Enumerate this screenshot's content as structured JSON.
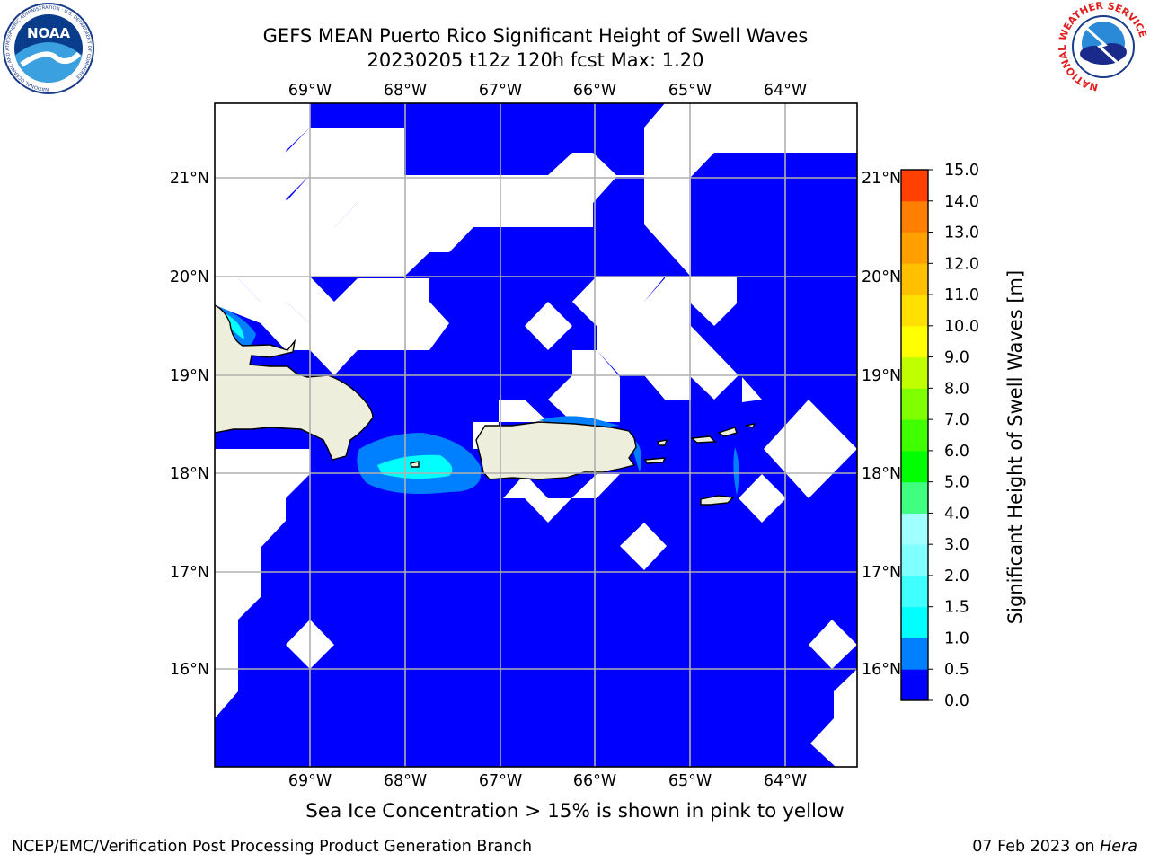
{
  "title": {
    "line1": "GEFS MEAN Puerto Rico Significant Height of Swell Waves",
    "line2": "20230205 t12z 120h fcst   Max: 1.20"
  },
  "map": {
    "lon_ticks": [
      "69°W",
      "68°W",
      "67°W",
      "66°W",
      "65°W",
      "64°W"
    ],
    "lat_ticks": [
      "21°N",
      "20°N",
      "19°N",
      "18°N",
      "17°N",
      "16°N"
    ],
    "colors": {
      "ocean_base": "#0000ff",
      "land": "#eeeedd",
      "no_data": "#ffffff",
      "grid": "#b0b0b0",
      "swell_0_5": "#0080ff",
      "swell_1_0": "#00ffff"
    }
  },
  "colorbar": {
    "label": "Significant Height of Swell Waves [m]",
    "ticks": [
      "15.0",
      "14.0",
      "13.0",
      "12.0",
      "11.0",
      "10.0",
      "9.0",
      "8.0",
      "7.0",
      "6.0",
      "5.0",
      "4.0",
      "3.0",
      "2.0",
      "1.5",
      "1.0",
      "0.5",
      "0.0"
    ],
    "colors": [
      "#0000ff",
      "#0080ff",
      "#00ffff",
      "#40ffff",
      "#80ffff",
      "#a0ffff",
      "#40ff80",
      "#00ff00",
      "#40ff00",
      "#80ff00",
      "#c0ff00",
      "#ffff00",
      "#ffe000",
      "#ffc000",
      "#ffa000",
      "#ff8000",
      "#ff4000",
      "#ff0000"
    ]
  },
  "note": "Sea Ice Concentration > 15% is shown in pink to yellow",
  "footer": {
    "left": "NCEP/EMC/Verification Post Processing Product Generation Branch",
    "right_prefix": "07 Feb 2023 on ",
    "right_machine": "Hera"
  },
  "logos": {
    "noaa": "NOAA",
    "noaa_ring": "NATIONAL OCEANIC AND ATMOSPHERIC ADMINISTRATION · U.S. DEPARTMENT OF COMMERCE",
    "nws_ring": "NATIONAL WEATHER SERVICE"
  }
}
